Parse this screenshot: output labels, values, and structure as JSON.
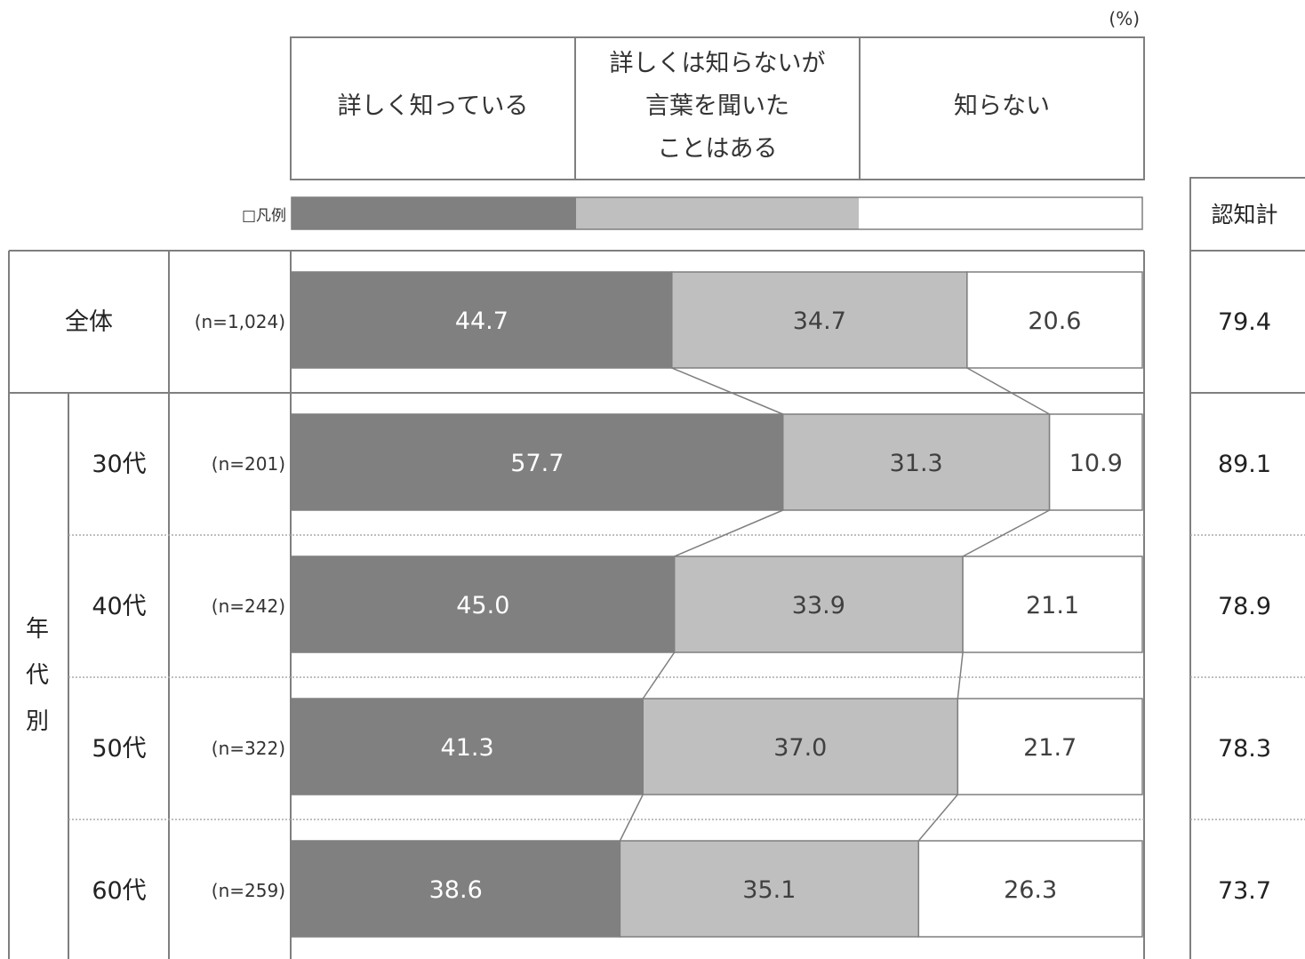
{
  "unit_label": "(%)",
  "legend_caption": "□凡例",
  "header": {
    "col1": "詳しく知っている",
    "col2_lines": [
      "詳しくは知らないが",
      "言葉を聞いた",
      "ことはある"
    ],
    "col3": "知らない",
    "total": "認知計"
  },
  "group_label_chars": [
    "年",
    "代",
    "別"
  ],
  "colors": {
    "dark": "#808080",
    "light": "#bfbfbf",
    "none": "#ffffff",
    "border": "#7f7f7f"
  },
  "chart_data": {
    "type": "bar",
    "stacked": true,
    "orientation": "horizontal",
    "xlim": [
      0,
      100
    ],
    "series_names": [
      "詳しく知っている",
      "詳しくは知らないが言葉を聞いたことはある",
      "知らない"
    ],
    "rows": [
      {
        "label": "全体",
        "n": "(n=1,024)",
        "values": [
          44.7,
          34.7,
          20.6
        ],
        "labels": [
          "44.7",
          "34.7",
          "20.6"
        ],
        "total": "79.4"
      },
      {
        "label": "30代",
        "n": "(n=201)",
        "values": [
          57.7,
          31.3,
          10.9
        ],
        "labels": [
          "57.7",
          "31.3",
          "10.9"
        ],
        "total": "89.1"
      },
      {
        "label": "40代",
        "n": "(n=242)",
        "values": [
          45.0,
          33.9,
          21.1
        ],
        "labels": [
          "45.0",
          "33.9",
          "21.1"
        ],
        "total": "78.9"
      },
      {
        "label": "50代",
        "n": "(n=322)",
        "values": [
          41.3,
          37.0,
          21.7
        ],
        "labels": [
          "41.3",
          "37.0",
          "21.7"
        ],
        "total": "78.3"
      },
      {
        "label": "60代",
        "n": "(n=259)",
        "values": [
          38.6,
          35.1,
          26.3
        ],
        "labels": [
          "38.6",
          "35.1",
          "26.3"
        ],
        "total": "73.7"
      }
    ]
  }
}
